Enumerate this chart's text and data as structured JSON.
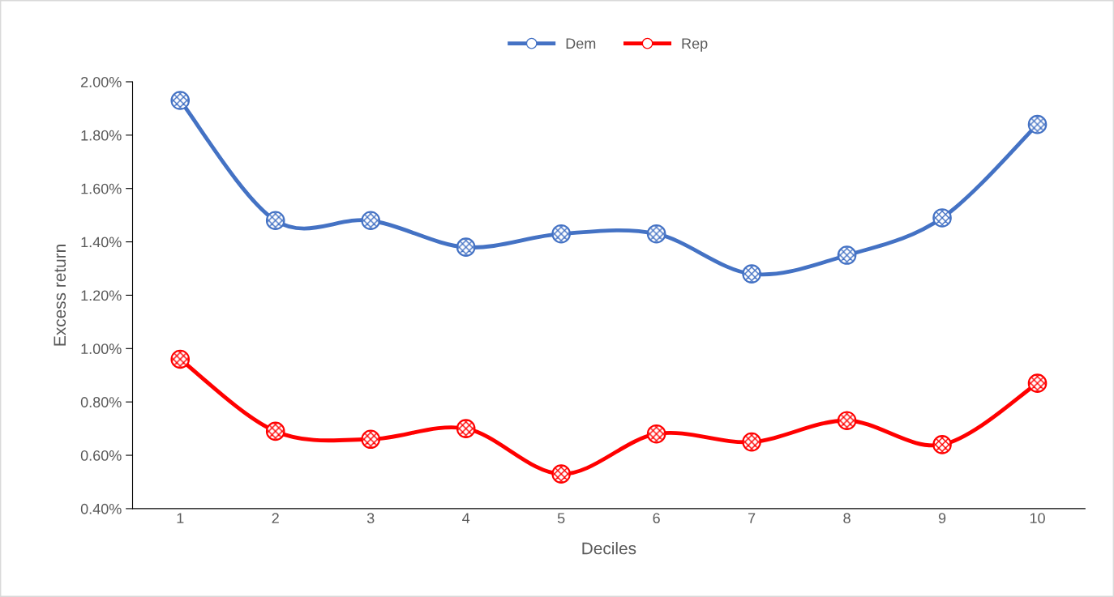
{
  "chart_data": {
    "type": "line",
    "xlabel": "Deciles",
    "ylabel": "Excess return",
    "categories": [
      "1",
      "2",
      "3",
      "4",
      "5",
      "6",
      "7",
      "8",
      "9",
      "10"
    ],
    "series": [
      {
        "name": "Dem",
        "color": "#4472c4",
        "values": [
          1.93,
          1.48,
          1.48,
          1.38,
          1.43,
          1.43,
          1.28,
          1.35,
          1.49,
          1.84
        ]
      },
      {
        "name": "Rep",
        "color": "#ff0000",
        "values": [
          0.96,
          0.69,
          0.66,
          0.7,
          0.53,
          0.68,
          0.65,
          0.73,
          0.64,
          0.87
        ]
      }
    ],
    "ylim": [
      0.4,
      2.0
    ],
    "yticks": [
      {
        "value": 0.4,
        "label": "0.40%"
      },
      {
        "value": 0.6,
        "label": "0.60%"
      },
      {
        "value": 0.8,
        "label": "0.80%"
      },
      {
        "value": 1.0,
        "label": "1.00%"
      },
      {
        "value": 1.2,
        "label": "1.20%"
      },
      {
        "value": 1.4,
        "label": "1.40%"
      },
      {
        "value": 1.6,
        "label": "1.60%"
      },
      {
        "value": 1.8,
        "label": "1.80%"
      },
      {
        "value": 2.0,
        "label": "2.00%"
      }
    ],
    "grid": false,
    "legend": "top",
    "marker": "circle",
    "line_style": "solid"
  }
}
